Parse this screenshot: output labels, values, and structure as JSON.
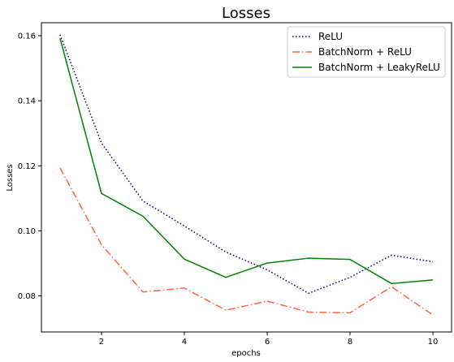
{
  "chart_data": {
    "type": "line",
    "title": "Losses",
    "xlabel": "epochs",
    "ylabel": "Losses",
    "xlim": [
      0.55,
      10.45
    ],
    "ylim": [
      0.0689,
      0.164
    ],
    "xticks": [
      2,
      4,
      6,
      8,
      10
    ],
    "xtick_labels": [
      "2",
      "4",
      "6",
      "8",
      "10"
    ],
    "yticks": [
      0.08,
      0.1,
      0.12,
      0.14,
      0.16
    ],
    "ytick_labels": [
      "0.08",
      "0.10",
      "0.12",
      "0.14",
      "0.16"
    ],
    "grid": false,
    "legend_position": "top-right",
    "x": [
      1,
      2,
      3,
      4,
      5,
      6,
      7,
      8,
      9,
      10
    ],
    "series": [
      {
        "name": "ReLU",
        "color": "#000080",
        "style": "dotted",
        "values": [
          0.1603,
          0.127,
          0.1092,
          0.1015,
          0.0935,
          0.088,
          0.0808,
          0.0857,
          0.0925,
          0.0905
        ]
      },
      {
        "name": "BatchNorm + ReLU",
        "color": "#ff6347",
        "style": "dashdot",
        "values": [
          0.1194,
          0.0957,
          0.0812,
          0.0824,
          0.0756,
          0.0784,
          0.075,
          0.0748,
          0.0828,
          0.0741
        ]
      },
      {
        "name": "BatchNorm + LeakyReLU",
        "color": "#008000",
        "style": "solid",
        "values": [
          0.1592,
          0.1115,
          0.1045,
          0.0913,
          0.0857,
          0.0901,
          0.0916,
          0.0912,
          0.0838,
          0.0849
        ]
      }
    ]
  }
}
